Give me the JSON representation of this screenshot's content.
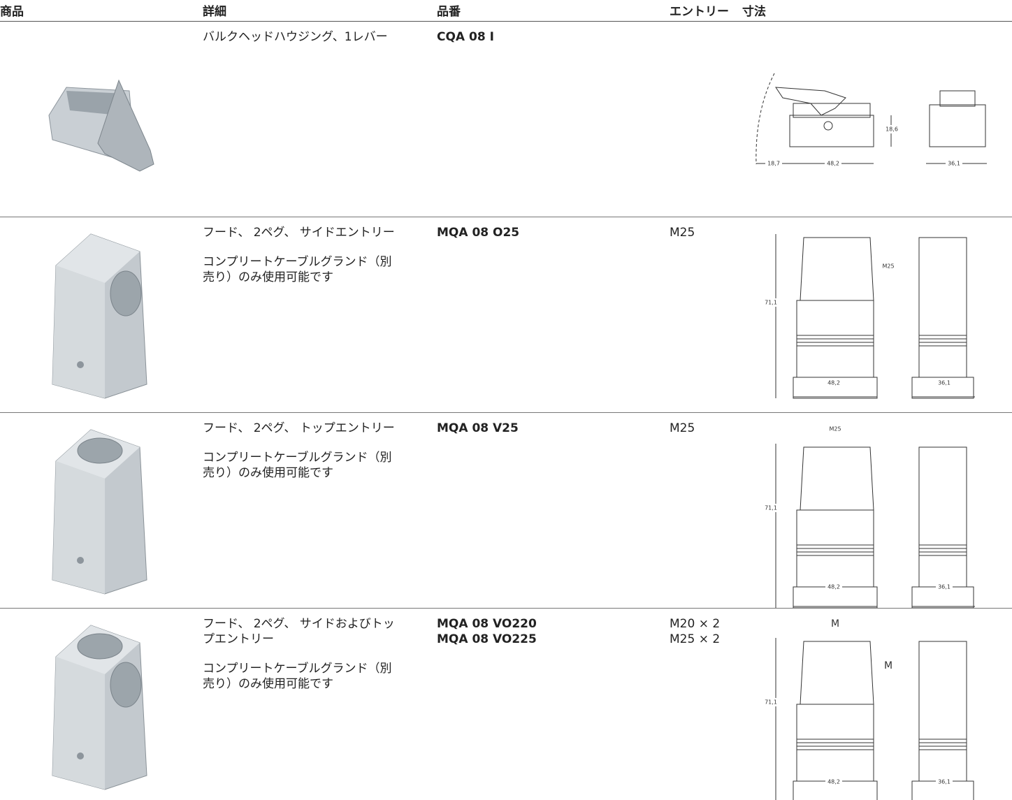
{
  "table": {
    "headers": [
      "商品",
      "詳細",
      "品番",
      "エントリー",
      "寸法"
    ],
    "rows": [
      {
        "details": [
          "バルクヘッドハウジング、1レバー"
        ],
        "part_numbers": [
          "CQA 08 I"
        ],
        "entry": [],
        "dimensions": [
          "18,7",
          "48,2",
          "18,6",
          "36,1"
        ]
      },
      {
        "details": [
          "フード、 2ペグ、 サイドエントリー",
          "コンプリートケーブルグランド（別売り）のみ使用可能です"
        ],
        "part_numbers": [
          "MQA 08 O25"
        ],
        "entry": [
          "M25"
        ],
        "dimensions": [
          "71,1",
          "M25",
          "48,2",
          "36,1"
        ]
      },
      {
        "details": [
          "フード、 2ペグ、 トップエントリー",
          "コンプリートケーブルグランド（別売り）のみ使用可能です"
        ],
        "part_numbers": [
          "MQA 08 V25"
        ],
        "entry": [
          "M25"
        ],
        "dimensions": [
          "M25",
          "71,1",
          "48,2",
          "36,1"
        ]
      },
      {
        "details": [
          "フード、 2ペグ、 サイドおよびトップエントリー",
          "コンプリートケーブルグランド（別売り）のみ使用可能です"
        ],
        "part_numbers": [
          "MQA 08 VO220",
          "MQA 08 VO225"
        ],
        "entry": [
          "M20 × 2",
          "M25 × 2"
        ],
        "dimensions": [
          "M",
          "M",
          "71,1",
          "48,2",
          "36,1"
        ]
      }
    ]
  }
}
